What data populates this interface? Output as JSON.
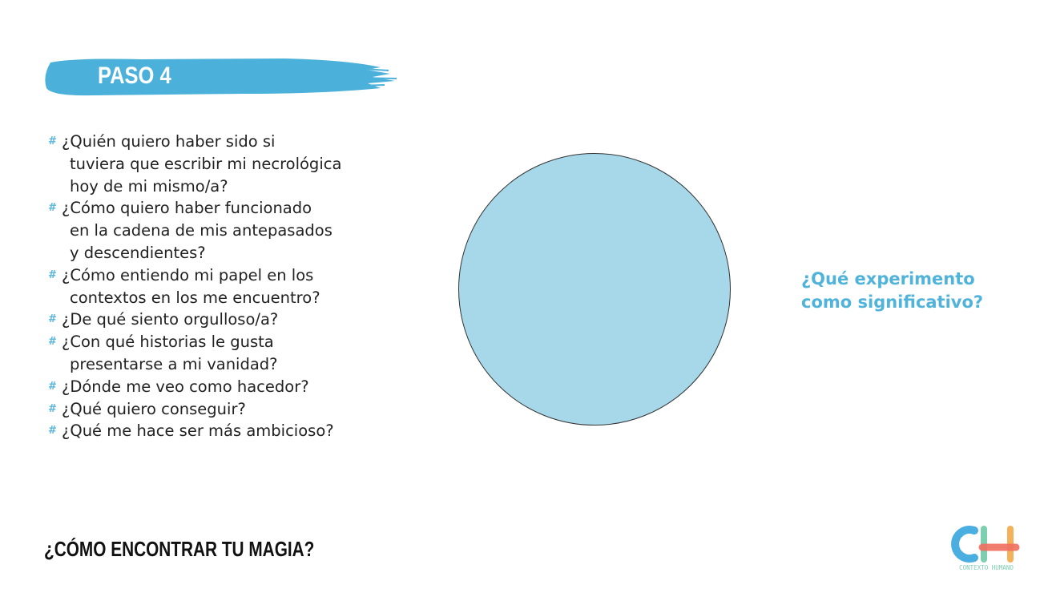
{
  "header": {
    "step_label": "PASO 4"
  },
  "questions": [
    {
      "lines": [
        "¿Quién quiero haber sido si",
        "tuviera que escribir mi necrológica",
        "hoy de mi mismo/a?"
      ]
    },
    {
      "lines": [
        "¿Cómo quiero haber funcionado",
        "en la cadena de mis antepasados",
        "y descendientes?"
      ]
    },
    {
      "lines": [
        "¿Cómo entiendo mi papel en los",
        "contextos en los me encuentro?"
      ]
    },
    {
      "lines": [
        "¿De qué siento orgulloso/a?"
      ]
    },
    {
      "lines": [
        "¿Con qué historias le gusta",
        "presentarse a mi vanidad?"
      ]
    },
    {
      "lines": [
        "¿Dónde me veo como hacedor?"
      ]
    },
    {
      "lines": [
        "¿Qué quiero conseguir?"
      ]
    },
    {
      "lines": [
        "¿Qué me hace ser más ambicioso?"
      ]
    }
  ],
  "bullet_icon": "hash-icon",
  "circle_question": {
    "line1": "¿Qué experimento",
    "line2": "como significativo?"
  },
  "footer": {
    "title": "¿CÓMO ENCONTRAR TU MAGIA?"
  },
  "logo": {
    "text": "CONTEXTO HUMANO",
    "letters": "CH"
  },
  "colors": {
    "accent": "#4fb3da",
    "circle": "#a6d8ea",
    "brush": "#4cb1da"
  }
}
